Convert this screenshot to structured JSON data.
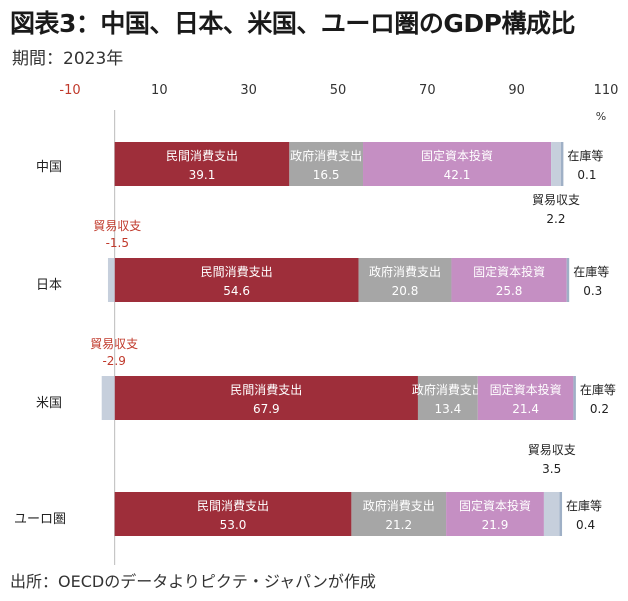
{
  "title": "図表3：中国、日本、米国、ユーロ圏のGDP構成比",
  "subtitle": "期間：2023年",
  "source": "出所：OECDのデータよりピクテ・ジャパンが作成",
  "colors": {
    "consumption": "#9e2e3a",
    "government": "#a6a6a6",
    "investment": "#c58fc3",
    "trade": "#c6cfdc",
    "inventory": "#9fb0c6",
    "axis_negative": "#c0392b",
    "axis_positive": "#333333",
    "negative_label": "#c0392b"
  },
  "chart_data": {
    "type": "bar",
    "orientation": "horizontal",
    "stacked": true,
    "xlim": [
      -10,
      110
    ],
    "x_ticks": [
      "-10",
      "10",
      "30",
      "50",
      "70",
      "90",
      "110"
    ],
    "unit": "%",
    "categories": [
      "中国",
      "日本",
      "米国",
      "ユーロ圏"
    ],
    "series": [
      {
        "name": "民間消費支出",
        "key": "consumption",
        "values": [
          39.1,
          54.6,
          67.9,
          53.0
        ],
        "labels": [
          "39.1",
          "54.6",
          "67.9",
          "53.0"
        ]
      },
      {
        "name": "政府消費支出",
        "key": "government",
        "values": [
          16.5,
          20.8,
          13.4,
          21.2
        ],
        "labels": [
          "16.5",
          "20.8",
          "13.4",
          "21.2"
        ]
      },
      {
        "name": "固定資本投資",
        "key": "investment",
        "values": [
          42.1,
          25.8,
          21.4,
          21.9
        ],
        "labels": [
          "42.1",
          "25.8",
          "21.4",
          "21.9"
        ]
      },
      {
        "name": "貿易収支",
        "key": "trade",
        "values": [
          2.2,
          -1.5,
          -2.9,
          3.5
        ],
        "labels": [
          "2.2",
          "-1.5",
          "-2.9",
          "3.5"
        ]
      },
      {
        "name": "在庫等",
        "key": "inventory",
        "values": [
          0.1,
          0.3,
          0.2,
          0.4
        ],
        "labels": [
          "0.1",
          "0.3",
          "0.2",
          "0.4"
        ]
      }
    ]
  }
}
